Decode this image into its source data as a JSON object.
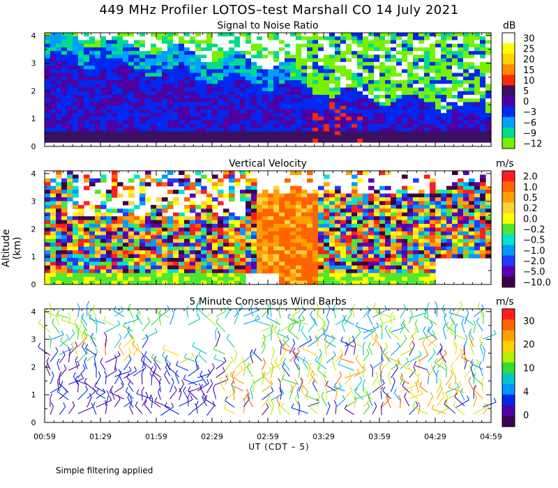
{
  "title": "449 MHz Profiler LOTOS–test Marshall CO 14 July 2021",
  "ylabel": "Altitude (km)",
  "xlabel": "UT  (CDT – 5)",
  "footnote": "Simple filtering applied",
  "chart_data": [
    {
      "type": "heatmap",
      "title": "Signal to Noise Ratio",
      "unit": "dB",
      "xlabel": "UT (CDT - 5)",
      "ylabel": "Altitude (km)",
      "x_ticks": [
        "00:59",
        "01:29",
        "01:59",
        "02:29",
        "02:59",
        "03:29",
        "03:59",
        "04:29",
        "04:59"
      ],
      "y_ticks": [
        0,
        1,
        2,
        3,
        4
      ],
      "ylim": [
        0,
        4.1
      ],
      "xlim_hours": [
        0.983,
        4.983
      ],
      "colorbar": {
        "labels": [
          "30",
          "25",
          "20",
          "15",
          "10",
          "5",
          "0",
          "−3",
          "−6",
          "−9",
          "−12"
        ],
        "colors": [
          "#ffffff",
          "#ffff00",
          "#ffd200",
          "#ff8c00",
          "#ff2800",
          "#3c1060",
          "#5000a0",
          "#0028f0",
          "#00a0ff",
          "#00dc8c",
          "#78f000"
        ]
      }
    },
    {
      "type": "heatmap",
      "title": "Vertical Velocity",
      "unit": "m/s",
      "xlabel": "UT (CDT - 5)",
      "ylabel": "Altitude (km)",
      "y_ticks": [
        0,
        1,
        2,
        3,
        4
      ],
      "ylim": [
        0,
        4.1
      ],
      "colorbar": {
        "labels": [
          "2.0",
          "1.0",
          "0.5",
          "0.2",
          "0.0",
          "−0.2",
          "−0.5",
          "−1.0",
          "−2.0",
          "−5.0",
          "−10.0"
        ],
        "colors": [
          "#ff1e1e",
          "#ff6400",
          "#ffa000",
          "#ffd23c",
          "#ffff00",
          "#50e632",
          "#00e6c8",
          "#009bff",
          "#1e3cff",
          "#5a00b4",
          "#3c0046"
        ]
      }
    },
    {
      "type": "scatter",
      "title": "5 Minute Consensus Wind Barbs",
      "unit": "m/s",
      "xlabel": "UT (CDT - 5)",
      "ylabel": "Altitude (km)",
      "y_ticks": [
        0,
        1,
        2,
        3,
        4
      ],
      "ylim": [
        0,
        4.1
      ],
      "colorbar": {
        "labels": [
          "30",
          "20",
          "10",
          "4",
          "0"
        ],
        "colors": [
          "#ff1e1e",
          "#ff6400",
          "#ffa000",
          "#ffd200",
          "#b4f000",
          "#32dc32",
          "#00c8c8",
          "#0096ff",
          "#0028e6",
          "#5000aa",
          "#3c0050"
        ]
      }
    }
  ]
}
